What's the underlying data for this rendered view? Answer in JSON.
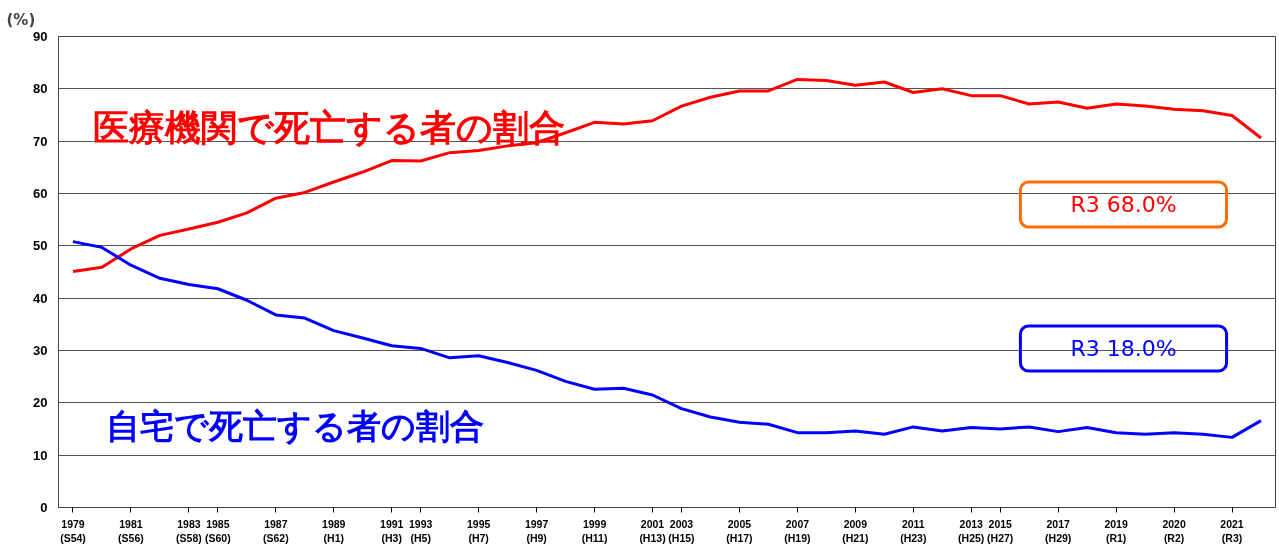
{
  "chart_data": {
    "type": "line",
    "ylabel": "(%)",
    "categories": [
      "1979\n(S54)",
      null,
      "1981\n(S56)",
      null,
      "1983\n(S58)",
      "1985\n(S60)",
      null,
      "1987\n(S62)",
      null,
      "1989\n(H1)",
      null,
      "1991\n(H3)",
      "1993\n(H5)",
      null,
      "1995\n(H7)",
      null,
      "1997\n(H9)",
      null,
      "1999\n(H11)",
      null,
      "2001\n(H13)",
      "2003\n(H15)",
      null,
      "2005\n(H17)",
      null,
      "2007\n(H19)",
      null,
      "2009\n(H21)",
      null,
      "2011\n(H23)",
      null,
      "2013\n(H25)",
      "2015\n(H27)",
      null,
      "2017\n(H29)",
      null,
      "2019\n(R1)",
      null,
      "2020\n(R2)",
      null,
      "2021\n(R3)",
      null
    ],
    "series": [
      {
        "name": "医療機関で死亡する者の割合",
        "color": "#ff0000",
        "values": [
          45.1,
          45.9,
          49.4,
          52.0,
          53.2,
          54.5,
          56.3,
          59.1,
          60.2,
          62.2,
          64.1,
          66.3,
          66.2,
          67.8,
          68.2,
          69.1,
          69.7,
          71.6,
          73.6,
          73.3,
          73.9,
          76.7,
          78.4,
          79.6,
          79.6,
          81.8,
          81.6,
          80.7,
          81.3,
          79.3,
          80.0,
          78.7,
          78.7,
          77.1,
          77.5,
          76.3,
          77.1,
          76.7,
          76.1,
          75.8,
          74.9,
          70.6
        ]
      },
      {
        "name": "自宅で死亡する者の割合",
        "color": "#0000ff",
        "values": [
          50.8,
          49.7,
          46.3,
          43.8,
          42.6,
          41.8,
          39.6,
          36.8,
          36.2,
          33.8,
          32.4,
          30.9,
          30.4,
          28.6,
          29.0,
          27.7,
          26.2,
          24.1,
          22.6,
          22.8,
          21.5,
          18.9,
          17.3,
          16.3,
          15.9,
          14.3,
          14.3,
          14.6,
          14.0,
          15.4,
          14.6,
          15.3,
          15.0,
          15.4,
          14.5,
          15.3,
          14.3,
          14.0,
          14.3,
          14.0,
          13.4,
          16.6
        ]
      }
    ],
    "annotations": [
      "R3 68.0%",
      "R3 18.0%"
    ],
    "ylim": [
      0,
      90
    ],
    "yticks": [
      0,
      10,
      20,
      30,
      40,
      50,
      60,
      70,
      80,
      90
    ],
    "grid": "y",
    "marker": "none",
    "line_style": "solid"
  }
}
